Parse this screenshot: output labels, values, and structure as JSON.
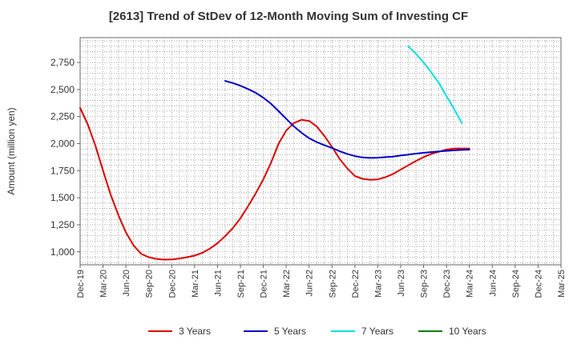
{
  "chart_data": {
    "type": "line",
    "title": "[2613]  Trend of StDev of 12-Month Moving Sum of Investing CF",
    "xlabel": "",
    "ylabel": "Amount (million yen)",
    "ylim": [
      880,
      2980
    ],
    "yticks": [
      1000,
      1250,
      1500,
      1750,
      2000,
      2250,
      2500,
      2750
    ],
    "ytick_labels": [
      "1,000",
      "1,250",
      "1,500",
      "1,750",
      "2,000",
      "2,250",
      "2,500",
      "2,750"
    ],
    "x_categories": [
      "Dec-19",
      "Mar-20",
      "Jun-20",
      "Sep-20",
      "Dec-20",
      "Mar-21",
      "Jun-21",
      "Sep-21",
      "Dec-21",
      "Mar-22",
      "Jun-22",
      "Sep-22",
      "Dec-22",
      "Mar-23",
      "Jun-23",
      "Sep-23",
      "Dec-23",
      "Mar-24",
      "Jun-24",
      "Sep-24",
      "Dec-24",
      "Mar-25"
    ],
    "grid": true,
    "legend_position": "bottom",
    "series": [
      {
        "name": "3 Years",
        "color": "#dd0000",
        "x": [
          0,
          0.33,
          0.67,
          1,
          1.33,
          1.67,
          2,
          2.33,
          2.67,
          3,
          3.33,
          3.67,
          4,
          4.33,
          4.67,
          5,
          5.33,
          5.67,
          6,
          6.33,
          6.67,
          7,
          7.33,
          7.67,
          8,
          8.33,
          8.67,
          9,
          9.33,
          9.67,
          10,
          10.33,
          10.67,
          11,
          11.33,
          11.67,
          12,
          12.33,
          12.67,
          13,
          13.33,
          13.67,
          14,
          14.33,
          14.67,
          15,
          15.33,
          15.67,
          16,
          16.33,
          16.67,
          17
        ],
        "values": [
          2330,
          2180,
          1980,
          1750,
          1530,
          1340,
          1180,
          1060,
          980,
          950,
          935,
          928,
          930,
          938,
          950,
          965,
          990,
          1030,
          1080,
          1145,
          1220,
          1310,
          1420,
          1540,
          1670,
          1820,
          2000,
          2120,
          2190,
          2220,
          2210,
          2160,
          2070,
          1970,
          1860,
          1770,
          1700,
          1675,
          1665,
          1670,
          1690,
          1720,
          1760,
          1800,
          1840,
          1875,
          1905,
          1925,
          1945,
          1955,
          1955,
          1955
        ]
      },
      {
        "name": "5 Years",
        "color": "#0000cc",
        "x": [
          6.33,
          6.67,
          7,
          7.33,
          7.67,
          8,
          8.33,
          8.67,
          9,
          9.33,
          9.67,
          10,
          10.33,
          10.67,
          11,
          11.33,
          11.67,
          12,
          12.33,
          12.67,
          13,
          13.33,
          13.67,
          14,
          14.33,
          14.67,
          15,
          15.33,
          15.67,
          16,
          16.33,
          16.67,
          17
        ],
        "values": [
          2580,
          2560,
          2535,
          2505,
          2470,
          2425,
          2370,
          2300,
          2230,
          2160,
          2100,
          2050,
          2015,
          1985,
          1960,
          1930,
          1905,
          1885,
          1872,
          1868,
          1870,
          1875,
          1880,
          1890,
          1898,
          1908,
          1915,
          1922,
          1928,
          1933,
          1938,
          1942,
          1945
        ]
      },
      {
        "name": "7 Years",
        "color": "#00e0e0",
        "x": [
          14.33,
          14.67,
          15,
          15.33,
          15.67,
          16,
          16.33,
          16.67
        ],
        "values": [
          2900,
          2830,
          2750,
          2660,
          2560,
          2440,
          2320,
          2190
        ]
      },
      {
        "name": "10 Years",
        "color": "#008000",
        "x": [],
        "values": []
      }
    ]
  }
}
